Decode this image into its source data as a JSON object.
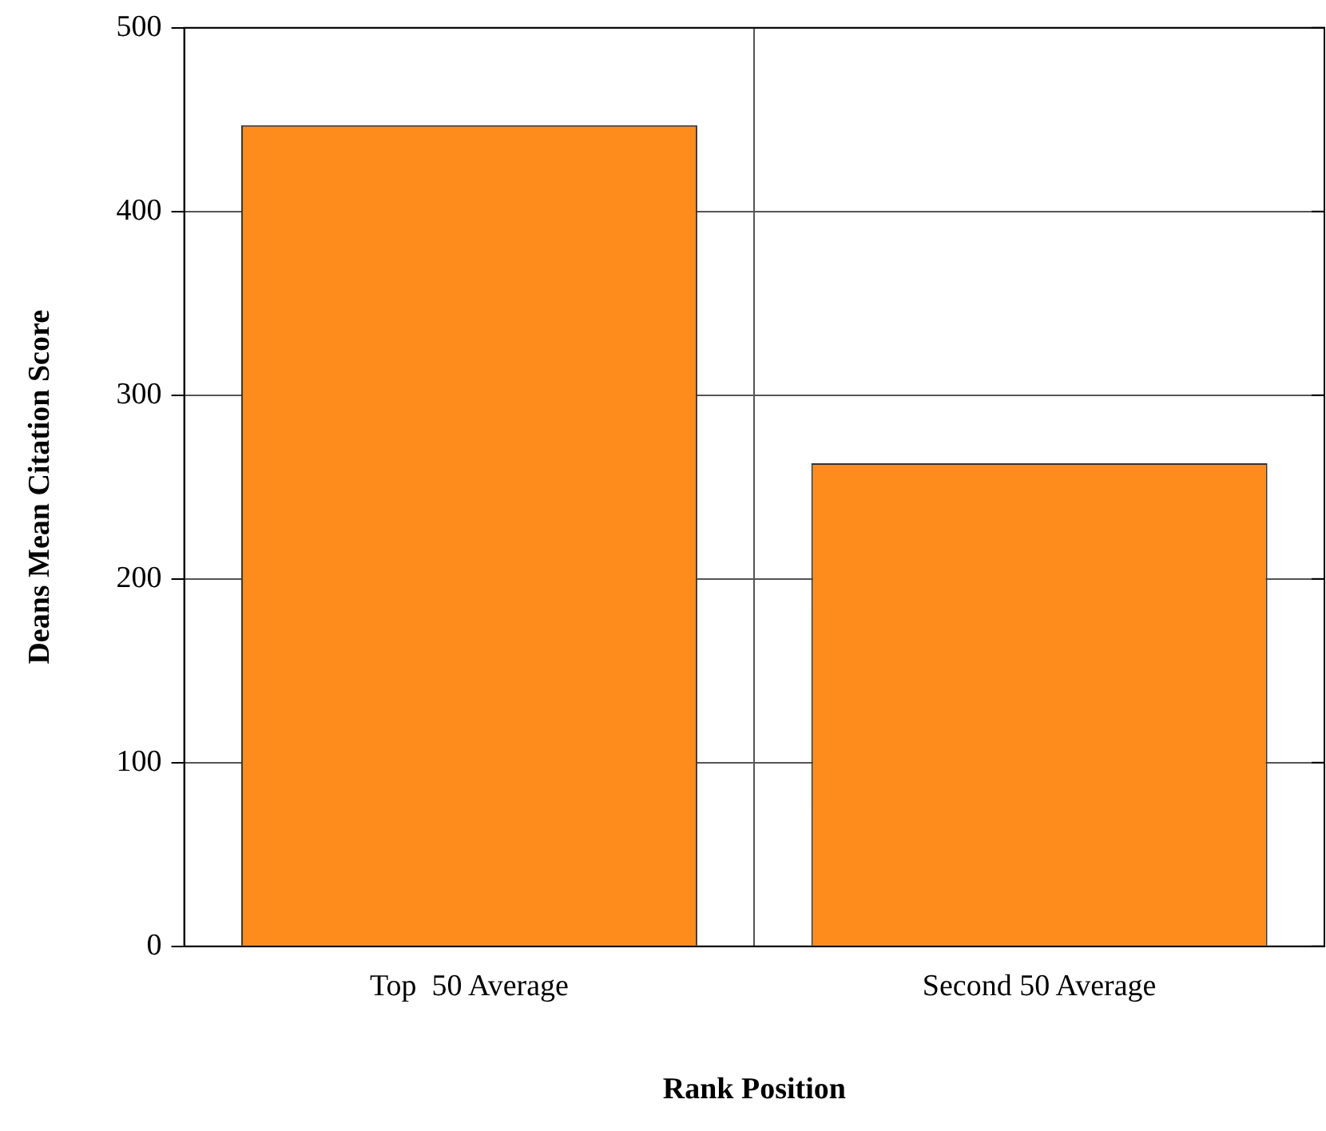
{
  "chart_data": {
    "type": "bar",
    "xlabel": "Rank Position",
    "ylabel": "Deans Mean Citation Score",
    "categories": [
      "Top  50 Average",
      "Second 50 Average"
    ],
    "values": [
      447,
      263
    ],
    "color": "#fd8c1c",
    "ylim": [
      0,
      500
    ],
    "yticks": [
      0,
      100,
      200,
      300,
      400,
      500
    ],
    "grid": true
  }
}
